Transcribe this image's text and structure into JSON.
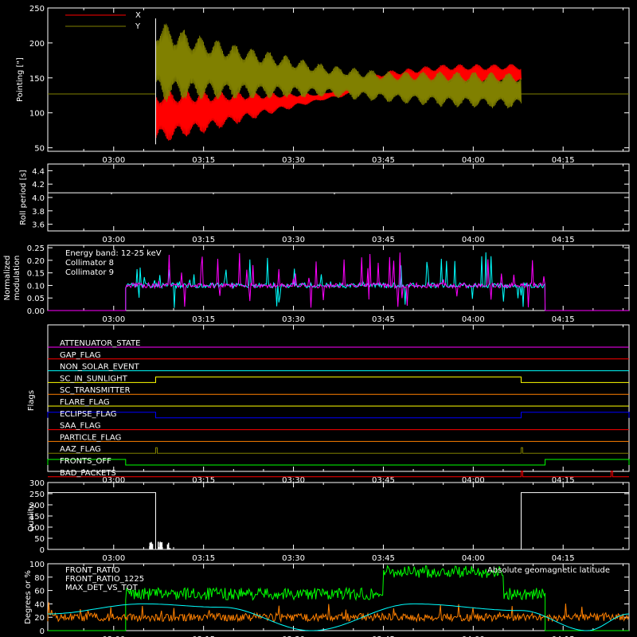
{
  "colors": {
    "x": "#ff0000",
    "y": "#808000",
    "white": "#ffffff",
    "cyan": "#00ffff",
    "magenta": "#ff00ff",
    "green": "#00ff00",
    "orange": "#ff8000",
    "yellow": "#ffff00",
    "blue": "#0000ff",
    "red": "#ff0000"
  },
  "time_ticks": [
    "03:00",
    "03:15",
    "03:30",
    "03:45",
    "04:00",
    "04:15"
  ],
  "panels": [
    {
      "id": "pointing",
      "ylabel": "Pointing [\"]",
      "yticks": [
        "50",
        "100",
        "150",
        "200",
        "250"
      ],
      "legend": [
        "X",
        "Y"
      ]
    },
    {
      "id": "roll",
      "ylabel": "Roll period [s]",
      "yticks": [
        "3.6",
        "3.8",
        "4.0",
        "4.2",
        "4.4"
      ]
    },
    {
      "id": "modulation",
      "ylabel_line1": "Normalized",
      "ylabel_line2": "modulation",
      "yticks": [
        "0.00",
        "0.05",
        "0.10",
        "0.15",
        "0.20",
        "0.25"
      ],
      "legend": [
        "Energy band: 12-25 keV",
        "Collimator 8",
        "Collimator 9"
      ]
    },
    {
      "id": "flags",
      "ylabel": "Flags",
      "flags": [
        "ATTENUATOR_STATE",
        "GAP_FLAG",
        "NON_SOLAR_EVENT",
        "SC_IN_SUNLIGHT",
        "SC_TRANSMITTER",
        "FLARE_FLAG",
        "ECLIPSE_FLAG",
        "SAA_FLAG",
        "PARTICLE_FLAG",
        "AAZ_FLAG",
        "FRONTS_OFF",
        "BAD_PACKETS"
      ]
    },
    {
      "id": "quality",
      "ylabel": "Quality",
      "yticks": [
        "0",
        "50",
        "100",
        "150",
        "200",
        "250",
        "300"
      ]
    },
    {
      "id": "ratio",
      "ylabel": "Degrees or %",
      "yticks": [
        "0",
        "20",
        "40",
        "60",
        "80",
        "100"
      ],
      "legend": [
        "FRONT_RATIO",
        "FRONT_RATIO_1225",
        "MAX_DET_VS_TOT"
      ],
      "legend_right": "Absolute geomagnetic latitude"
    }
  ],
  "chart_data": [
    {
      "type": "line",
      "id": "pointing",
      "x_range": [
        "02:49",
        "04:26"
      ],
      "ylim": [
        45,
        250
      ],
      "xlabel": "",
      "ylabel": "Pointing [\"]",
      "baseline": 127,
      "series": [
        {
          "name": "X",
          "envelope_time": [
            "03:07",
            "03:15",
            "03:25",
            "03:35",
            "03:45",
            "03:55",
            "04:08"
          ],
          "min": [
            55,
            70,
            95,
            118,
            132,
            138,
            140
          ],
          "max": [
            135,
            133,
            130,
            128,
            160,
            170,
            170
          ]
        },
        {
          "name": "Y",
          "envelope_time": [
            "03:07",
            "03:15",
            "03:25",
            "03:35",
            "03:45",
            "03:55",
            "04:08"
          ],
          "min": [
            115,
            118,
            120,
            122,
            115,
            108,
            105
          ],
          "max": [
            235,
            210,
            190,
            170,
            160,
            160,
            158
          ]
        }
      ]
    },
    {
      "type": "line",
      "id": "roll",
      "ylim": [
        3.5,
        4.5
      ],
      "ylabel": "Roll period [s]",
      "series": [
        {
          "name": "",
          "value": 4.07
        }
      ]
    },
    {
      "type": "line",
      "id": "modulation",
      "ylim": [
        0,
        0.26
      ],
      "ylabel": "Normalized modulation",
      "on_interval": [
        "03:02",
        "04:12"
      ],
      "series": [
        {
          "name": "Collimator 8",
          "baseline": 0.1
        },
        {
          "name": "Collimator 9",
          "baseline": 0.1
        }
      ]
    },
    {
      "type": "line",
      "id": "flags",
      "series": [
        {
          "name": "ATTENUATOR_STATE",
          "high": []
        },
        {
          "name": "GAP_FLAG",
          "high": []
        },
        {
          "name": "NON_SOLAR_EVENT",
          "high": []
        },
        {
          "name": "SC_IN_SUNLIGHT",
          "high": [
            [
              "03:07",
              "04:08"
            ]
          ]
        },
        {
          "name": "SC_TRANSMITTER",
          "high": []
        },
        {
          "name": "FLARE_FLAG",
          "high": []
        },
        {
          "name": "ECLIPSE_FLAG",
          "high": [
            [
              "02:49",
              "03:07"
            ],
            [
              "04:08",
              "04:26"
            ]
          ]
        },
        {
          "name": "SAA_FLAG",
          "high": []
        },
        {
          "name": "PARTICLE_FLAG",
          "high": []
        },
        {
          "name": "AAZ_FLAG",
          "high": [
            [
              "03:07",
              "03:07"
            ],
            [
              "04:08",
              "04:08"
            ]
          ]
        },
        {
          "name": "FRONTS_OFF",
          "high": [
            [
              "02:49",
              "03:02"
            ],
            [
              "04:12",
              "04:26"
            ]
          ]
        },
        {
          "name": "BAD_PACKETS",
          "high": [
            [
              "04:08",
              "04:08"
            ],
            [
              "04:23",
              "04:23"
            ]
          ]
        }
      ]
    },
    {
      "type": "line",
      "id": "quality",
      "ylim": [
        0,
        300
      ],
      "ylabel": "Quality",
      "series": [
        {
          "name": "",
          "segments": [
            {
              "t": [
                "02:49",
                "03:07"
              ],
              "value": 255
            },
            {
              "t": [
                "03:07",
                "04:08"
              ],
              "value": 0
            },
            {
              "t": [
                "04:08",
                "04:26"
              ],
              "value": 255
            }
          ]
        }
      ]
    },
    {
      "type": "line",
      "id": "ratio",
      "ylim": [
        0,
        100
      ],
      "ylabel": "Degrees or %",
      "series": [
        {
          "name": "FRONT_RATIO",
          "level": 0
        },
        {
          "name": "FRONT_RATIO_1225",
          "segments": [
            {
              "t": [
                "03:02",
                "03:45"
              ],
              "value": 55
            },
            {
              "t": [
                "03:45",
                "04:05"
              ],
              "value": 88
            },
            {
              "t": [
                "04:05",
                "04:12"
              ],
              "value": 55
            }
          ]
        },
        {
          "name": "MAX_DET_VS_TOT",
          "level": 20
        },
        {
          "name": "Absolute geomagnetic latitude",
          "points_time": [
            "02:49",
            "03:05",
            "03:18",
            "03:33",
            "03:50",
            "04:08",
            "04:19",
            "04:26"
          ],
          "points": [
            25,
            40,
            35,
            0,
            40,
            30,
            0,
            25
          ]
        }
      ]
    }
  ]
}
